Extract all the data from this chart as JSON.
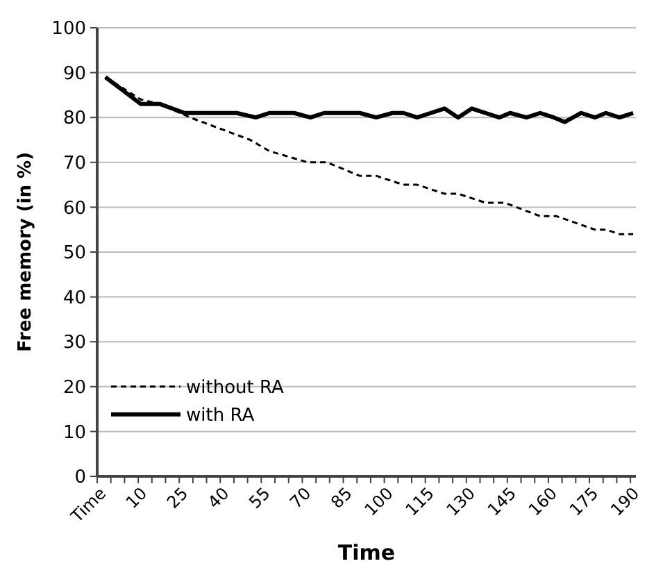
{
  "chart_data": {
    "type": "line",
    "xlabel": "Time",
    "ylabel": "Free memory (in %)",
    "xlim": [
      -5,
      192
    ],
    "ylim": [
      0,
      100
    ],
    "xticks": [
      {
        "value": -5,
        "label": "Time"
      },
      {
        "value": 0,
        "label": null
      },
      {
        "value": 5,
        "label": null
      },
      10,
      {
        "value": 15,
        "label": null
      },
      {
        "value": 20,
        "label": null
      },
      25,
      {
        "value": 30,
        "label": null
      },
      {
        "value": 35,
        "label": null
      },
      40,
      {
        "value": 45,
        "label": null
      },
      {
        "value": 50,
        "label": null
      },
      55,
      {
        "value": 60,
        "label": null
      },
      {
        "value": 65,
        "label": null
      },
      70,
      {
        "value": 75,
        "label": null
      },
      {
        "value": 80,
        "label": null
      },
      85,
      {
        "value": 90,
        "label": null
      },
      {
        "value": 95,
        "label": null
      },
      100,
      {
        "value": 105,
        "label": null
      },
      {
        "value": 110,
        "label": null
      },
      115,
      {
        "value": 120,
        "label": null
      },
      {
        "value": 125,
        "label": null
      },
      130,
      {
        "value": 135,
        "label": null
      },
      {
        "value": 140,
        "label": null
      },
      145,
      {
        "value": 150,
        "label": null
      },
      {
        "value": 155,
        "label": null
      },
      160,
      {
        "value": 165,
        "label": null
      },
      {
        "value": 170,
        "label": null
      },
      175,
      {
        "value": 180,
        "label": null
      },
      {
        "value": 185,
        "label": null
      },
      190
    ],
    "yticks": [
      0,
      10,
      20,
      30,
      40,
      50,
      60,
      70,
      80,
      90,
      100
    ],
    "grid": "y",
    "legend": "bottom left",
    "marker": "none",
    "series": [
      {
        "name": "without RA",
        "color": "#000000",
        "line_style": "dashed",
        "x": [
          -2,
          11,
          18,
          29,
          51,
          58,
          72,
          79,
          91,
          97,
          107,
          112,
          122,
          127,
          137,
          144,
          157,
          163,
          177,
          181,
          186,
          191
        ],
        "values": [
          89,
          84,
          83,
          80,
          75,
          72.5,
          70,
          70,
          67,
          67,
          65,
          65,
          63,
          63,
          61,
          61,
          58,
          58,
          55,
          55,
          54,
          54
        ]
      },
      {
        "name": "with RA",
        "color": "#000000",
        "line_style": "solid",
        "x": [
          -2,
          11,
          18,
          27,
          46,
          53,
          58,
          67,
          73,
          78,
          91,
          97,
          103,
          107,
          112,
          117,
          122,
          127,
          132,
          137,
          142,
          146,
          152,
          157,
          162,
          166,
          172,
          177,
          181,
          186,
          191
        ],
        "values": [
          89,
          83,
          83,
          81,
          81,
          80,
          81,
          81,
          80,
          81,
          81,
          80,
          81,
          81,
          80,
          81,
          82,
          80,
          82,
          81,
          80,
          81,
          80,
          81,
          80,
          79,
          81,
          80,
          81,
          80,
          81
        ]
      }
    ]
  }
}
